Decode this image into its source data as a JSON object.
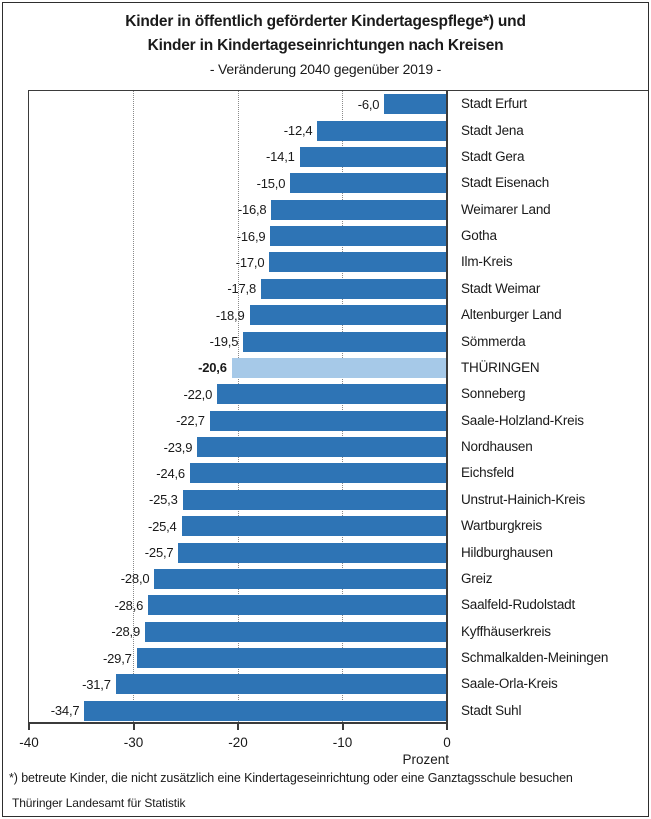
{
  "title": {
    "line1": "Kinder in öffentlich geförderter Kindertagespflege*) und",
    "line2": "Kinder in Kindertageseinrichtungen nach Kreisen",
    "subtitle": "- Veränderung 2040 gegenüber 2019 -"
  },
  "chart_data": {
    "type": "bar",
    "orientation": "horizontal",
    "title": "Kinder in öffentlich geförderter Kindertagespflege und Kinder in Kindertageseinrichtungen nach Kreisen, Veränderung 2040 gegenüber 2019",
    "xlabel": "Prozent",
    "xlim": [
      -40,
      0
    ],
    "x_ticks": [
      -40,
      -30,
      -20,
      -10,
      0
    ],
    "x_tick_labels": [
      "-40",
      "-30",
      "-20",
      "-10",
      "0"
    ],
    "gridlines_at": [
      -30,
      -20,
      -10
    ],
    "legend": "none",
    "colors": {
      "bar": "#2E74B5",
      "highlight_bar": "#A6C9E8",
      "axis": "#3b3b3b",
      "grid": "#8a8a8a"
    },
    "rows": [
      {
        "label": "Stadt Erfurt",
        "value": -6.0,
        "display": "-6,0",
        "highlight": false
      },
      {
        "label": "Stadt Jena",
        "value": -12.4,
        "display": "-12,4",
        "highlight": false
      },
      {
        "label": "Stadt Gera",
        "value": -14.1,
        "display": "-14,1",
        "highlight": false
      },
      {
        "label": "Stadt Eisenach",
        "value": -15.0,
        "display": "-15,0",
        "highlight": false
      },
      {
        "label": "Weimarer Land",
        "value": -16.8,
        "display": "-16,8",
        "highlight": false
      },
      {
        "label": "Gotha",
        "value": -16.9,
        "display": "-16,9",
        "highlight": false
      },
      {
        "label": "Ilm-Kreis",
        "value": -17.0,
        "display": "-17,0",
        "highlight": false
      },
      {
        "label": "Stadt Weimar",
        "value": -17.8,
        "display": "-17,8",
        "highlight": false
      },
      {
        "label": "Altenburger Land",
        "value": -18.9,
        "display": "-18,9",
        "highlight": false
      },
      {
        "label": "Sömmerda",
        "value": -19.5,
        "display": "-19,5",
        "highlight": false
      },
      {
        "label": "THÜRINGEN",
        "value": -20.6,
        "display": "-20,6",
        "highlight": true
      },
      {
        "label": "Sonneberg",
        "value": -22.0,
        "display": "-22,0",
        "highlight": false
      },
      {
        "label": "Saale-Holzland-Kreis",
        "value": -22.7,
        "display": "-22,7",
        "highlight": false
      },
      {
        "label": "Nordhausen",
        "value": -23.9,
        "display": "-23,9",
        "highlight": false
      },
      {
        "label": "Eichsfeld",
        "value": -24.6,
        "display": "-24,6",
        "highlight": false
      },
      {
        "label": "Unstrut-Hainich-Kreis",
        "value": -25.3,
        "display": "-25,3",
        "highlight": false
      },
      {
        "label": "Wartburgkreis",
        "value": -25.4,
        "display": "-25,4",
        "highlight": false
      },
      {
        "label": "Hildburghausen",
        "value": -25.7,
        "display": "-25,7",
        "highlight": false
      },
      {
        "label": "Greiz",
        "value": -28.0,
        "display": "-28,0",
        "highlight": false
      },
      {
        "label": "Saalfeld-Rudolstadt",
        "value": -28.6,
        "display": "-28,6",
        "highlight": false
      },
      {
        "label": "Kyffhäuserkreis",
        "value": -28.9,
        "display": "-28,9",
        "highlight": false
      },
      {
        "label": "Schmalkalden-Meiningen",
        "value": -29.7,
        "display": "-29,7",
        "highlight": false
      },
      {
        "label": "Saale-Orla-Kreis",
        "value": -31.7,
        "display": "-31,7",
        "highlight": false
      },
      {
        "label": "Stadt Suhl",
        "value": -34.7,
        "display": "-34,7",
        "highlight": false
      }
    ]
  },
  "axis": {
    "unit_label": "Prozent"
  },
  "footnote": "*) betreute Kinder, die nicht zusätzlich eine Kindertageseinrichtung oder eine Ganztagsschule besuchen",
  "source": "Thüringer Landesamt für Statistik"
}
